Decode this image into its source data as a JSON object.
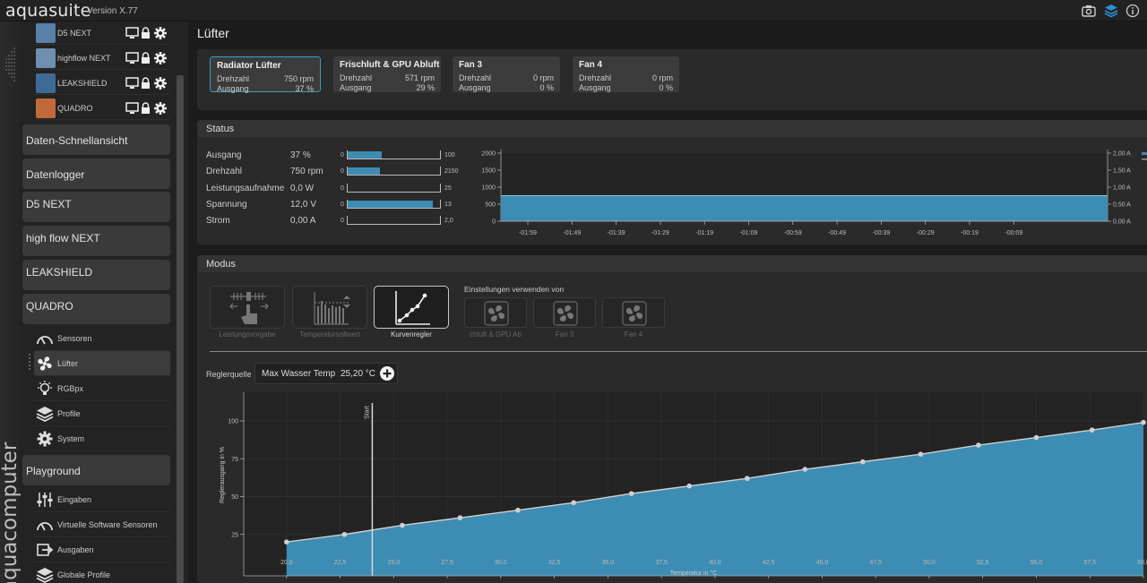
{
  "app": {
    "title": "aquasuite",
    "version": "Version X.77",
    "brand_vertical": "aquacomputer"
  },
  "sidebar": {
    "devices": [
      {
        "label": "D5 NEXT",
        "thumb_color": "#5a7fa8"
      },
      {
        "label": "highflow NEXT",
        "thumb_color": "#6f8fb0"
      },
      {
        "label": "LEAKSHIELD",
        "thumb_color": "#3f6a96"
      },
      {
        "label": "QUADRO",
        "thumb_color": "#c06a3a"
      }
    ],
    "groups": [
      {
        "label": "Daten-Schnellansicht"
      },
      {
        "label": "Datenlogger"
      },
      {
        "label": "D5 NEXT"
      },
      {
        "label": "high flow NEXT"
      },
      {
        "label": "LEAKSHIELD"
      },
      {
        "label": "QUADRO"
      }
    ],
    "nav": [
      {
        "label": "Sensoren",
        "icon": "gauge-icon"
      },
      {
        "label": "Lüfter",
        "icon": "fan-icon"
      },
      {
        "label": "RGBpx",
        "icon": "bulb-icon"
      },
      {
        "label": "Profile",
        "icon": "layers-icon"
      },
      {
        "label": "System",
        "icon": "gear-icon"
      }
    ],
    "playground": {
      "label": "Playground"
    },
    "playground_nav": [
      {
        "label": "Eingaben",
        "icon": "sliders-icon"
      },
      {
        "label": "Virtuelle Software Sensoren",
        "icon": "gauge-icon"
      },
      {
        "label": "Ausgaben",
        "icon": "output-icon"
      },
      {
        "label": "Globale Profile",
        "icon": "layers-icon"
      }
    ]
  },
  "page": {
    "title": "Lüfter"
  },
  "fans": [
    {
      "name": "Radiator Lüfter",
      "speed_label": "Drehzahl",
      "speed": "750 rpm",
      "output_label": "Ausgang",
      "output": "37 %"
    },
    {
      "name": "Frischluft & GPU Abluft",
      "speed_label": "Drehzahl",
      "speed": "571 rpm",
      "output_label": "Ausgang",
      "output": "29 %"
    },
    {
      "name": "Fan 3",
      "speed_label": "Drehzahl",
      "speed": "0 rpm",
      "output_label": "Ausgang",
      "output": "0 %"
    },
    {
      "name": "Fan 4",
      "speed_label": "Drehzahl",
      "speed": "0 rpm",
      "output_label": "Ausgang",
      "output": "0 %"
    }
  ],
  "status": {
    "title": "Status",
    "rows": [
      {
        "label": "Ausgang",
        "value": "37 %",
        "min": "0",
        "max": "100",
        "fill": 0.37
      },
      {
        "label": "Drehzahl",
        "value": "750 rpm",
        "min": "0",
        "max": "2150",
        "fill": 0.35
      },
      {
        "label": "Leistungsaufnahme",
        "value": "0,0 W",
        "min": "0",
        "max": "25",
        "fill": 0
      },
      {
        "label": "Spannung",
        "value": "12,0 V",
        "min": "0",
        "max": "13",
        "fill": 0.92
      },
      {
        "label": "Strom",
        "value": "0,00 A",
        "min": "0",
        "max": "2,0",
        "fill": 0
      }
    ],
    "chart_data": {
      "type": "area",
      "x": [
        "-01:59",
        "-01:49",
        "-01:39",
        "-01:29",
        "-01:19",
        "-01:09",
        "-00:59",
        "-00:49",
        "-00:39",
        "-00:29",
        "-00:19",
        "-00:09"
      ],
      "y_left_ticks": [
        "2000",
        "1500",
        "1000",
        "500",
        "0"
      ],
      "y_right_ticks": [
        "2,00 A",
        "1,50 A",
        "1,00 A",
        "0,50 A",
        "0,00 A"
      ],
      "ylim": [
        0,
        2000
      ],
      "series": [
        {
          "values": [
            750,
            750,
            750,
            750,
            750,
            750,
            750,
            750,
            750,
            750,
            750,
            750
          ]
        }
      ],
      "color": "#3d8cb3"
    }
  },
  "mode": {
    "title": "Modus",
    "buttons": [
      {
        "label": "Leistungsvorgabe",
        "icon": "manual-control-icon"
      },
      {
        "label": "Temperatursollwert",
        "icon": "target-temp-icon"
      },
      {
        "label": "Kurvenregler",
        "icon": "curve-icon"
      }
    ],
    "settings_from": "Einstellungen verwenden von",
    "use_from": [
      {
        "label": "chluft & GPU Ab"
      },
      {
        "label": "Fan 3"
      },
      {
        "label": "Fan 4"
      }
    ]
  },
  "controller": {
    "label": "Reglerquelle",
    "source": "Max Wasser Temp",
    "source_value": "25,20 °C"
  },
  "curve_chart": {
    "chart_data": {
      "type": "area",
      "xlabel": "Temperatur in °C",
      "ylabel": "Reglerausgang in %",
      "xlim": [
        18,
        60
      ],
      "ylim": [
        0,
        100
      ],
      "x_ticks": [
        20,
        22.5,
        25,
        27.5,
        30,
        32.5,
        35,
        37.5,
        40,
        42.5,
        45,
        47.5,
        50,
        52.5,
        55,
        57.5,
        60
      ],
      "x_tick_labels": [
        "20,0",
        "22,5",
        "25,0",
        "27,5",
        "30,0",
        "32,5",
        "35,0",
        "37,5",
        "40,0",
        "42,5",
        "45,0",
        "47,5",
        "50,0",
        "52,5",
        "55,0",
        "57,5",
        "60,0"
      ],
      "y_ticks": [
        25,
        50,
        75,
        100
      ],
      "y_tick_labels": [
        "25",
        "50",
        "75",
        "100"
      ],
      "points": [
        {
          "x": 20.0,
          "y": 20
        },
        {
          "x": 22.7,
          "y": 25
        },
        {
          "x": 25.4,
          "y": 31
        },
        {
          "x": 28.1,
          "y": 36
        },
        {
          "x": 30.8,
          "y": 41
        },
        {
          "x": 33.4,
          "y": 46
        },
        {
          "x": 36.1,
          "y": 52
        },
        {
          "x": 38.8,
          "y": 57
        },
        {
          "x": 41.5,
          "y": 62
        },
        {
          "x": 44.2,
          "y": 68
        },
        {
          "x": 46.9,
          "y": 73
        },
        {
          "x": 49.6,
          "y": 78
        },
        {
          "x": 52.3,
          "y": 84
        },
        {
          "x": 55.0,
          "y": 89
        },
        {
          "x": 57.6,
          "y": 94
        },
        {
          "x": 60.0,
          "y": 99
        }
      ],
      "start_marker": {
        "x": 24.0,
        "label": "Start"
      },
      "color": "#3d8cb3"
    }
  }
}
